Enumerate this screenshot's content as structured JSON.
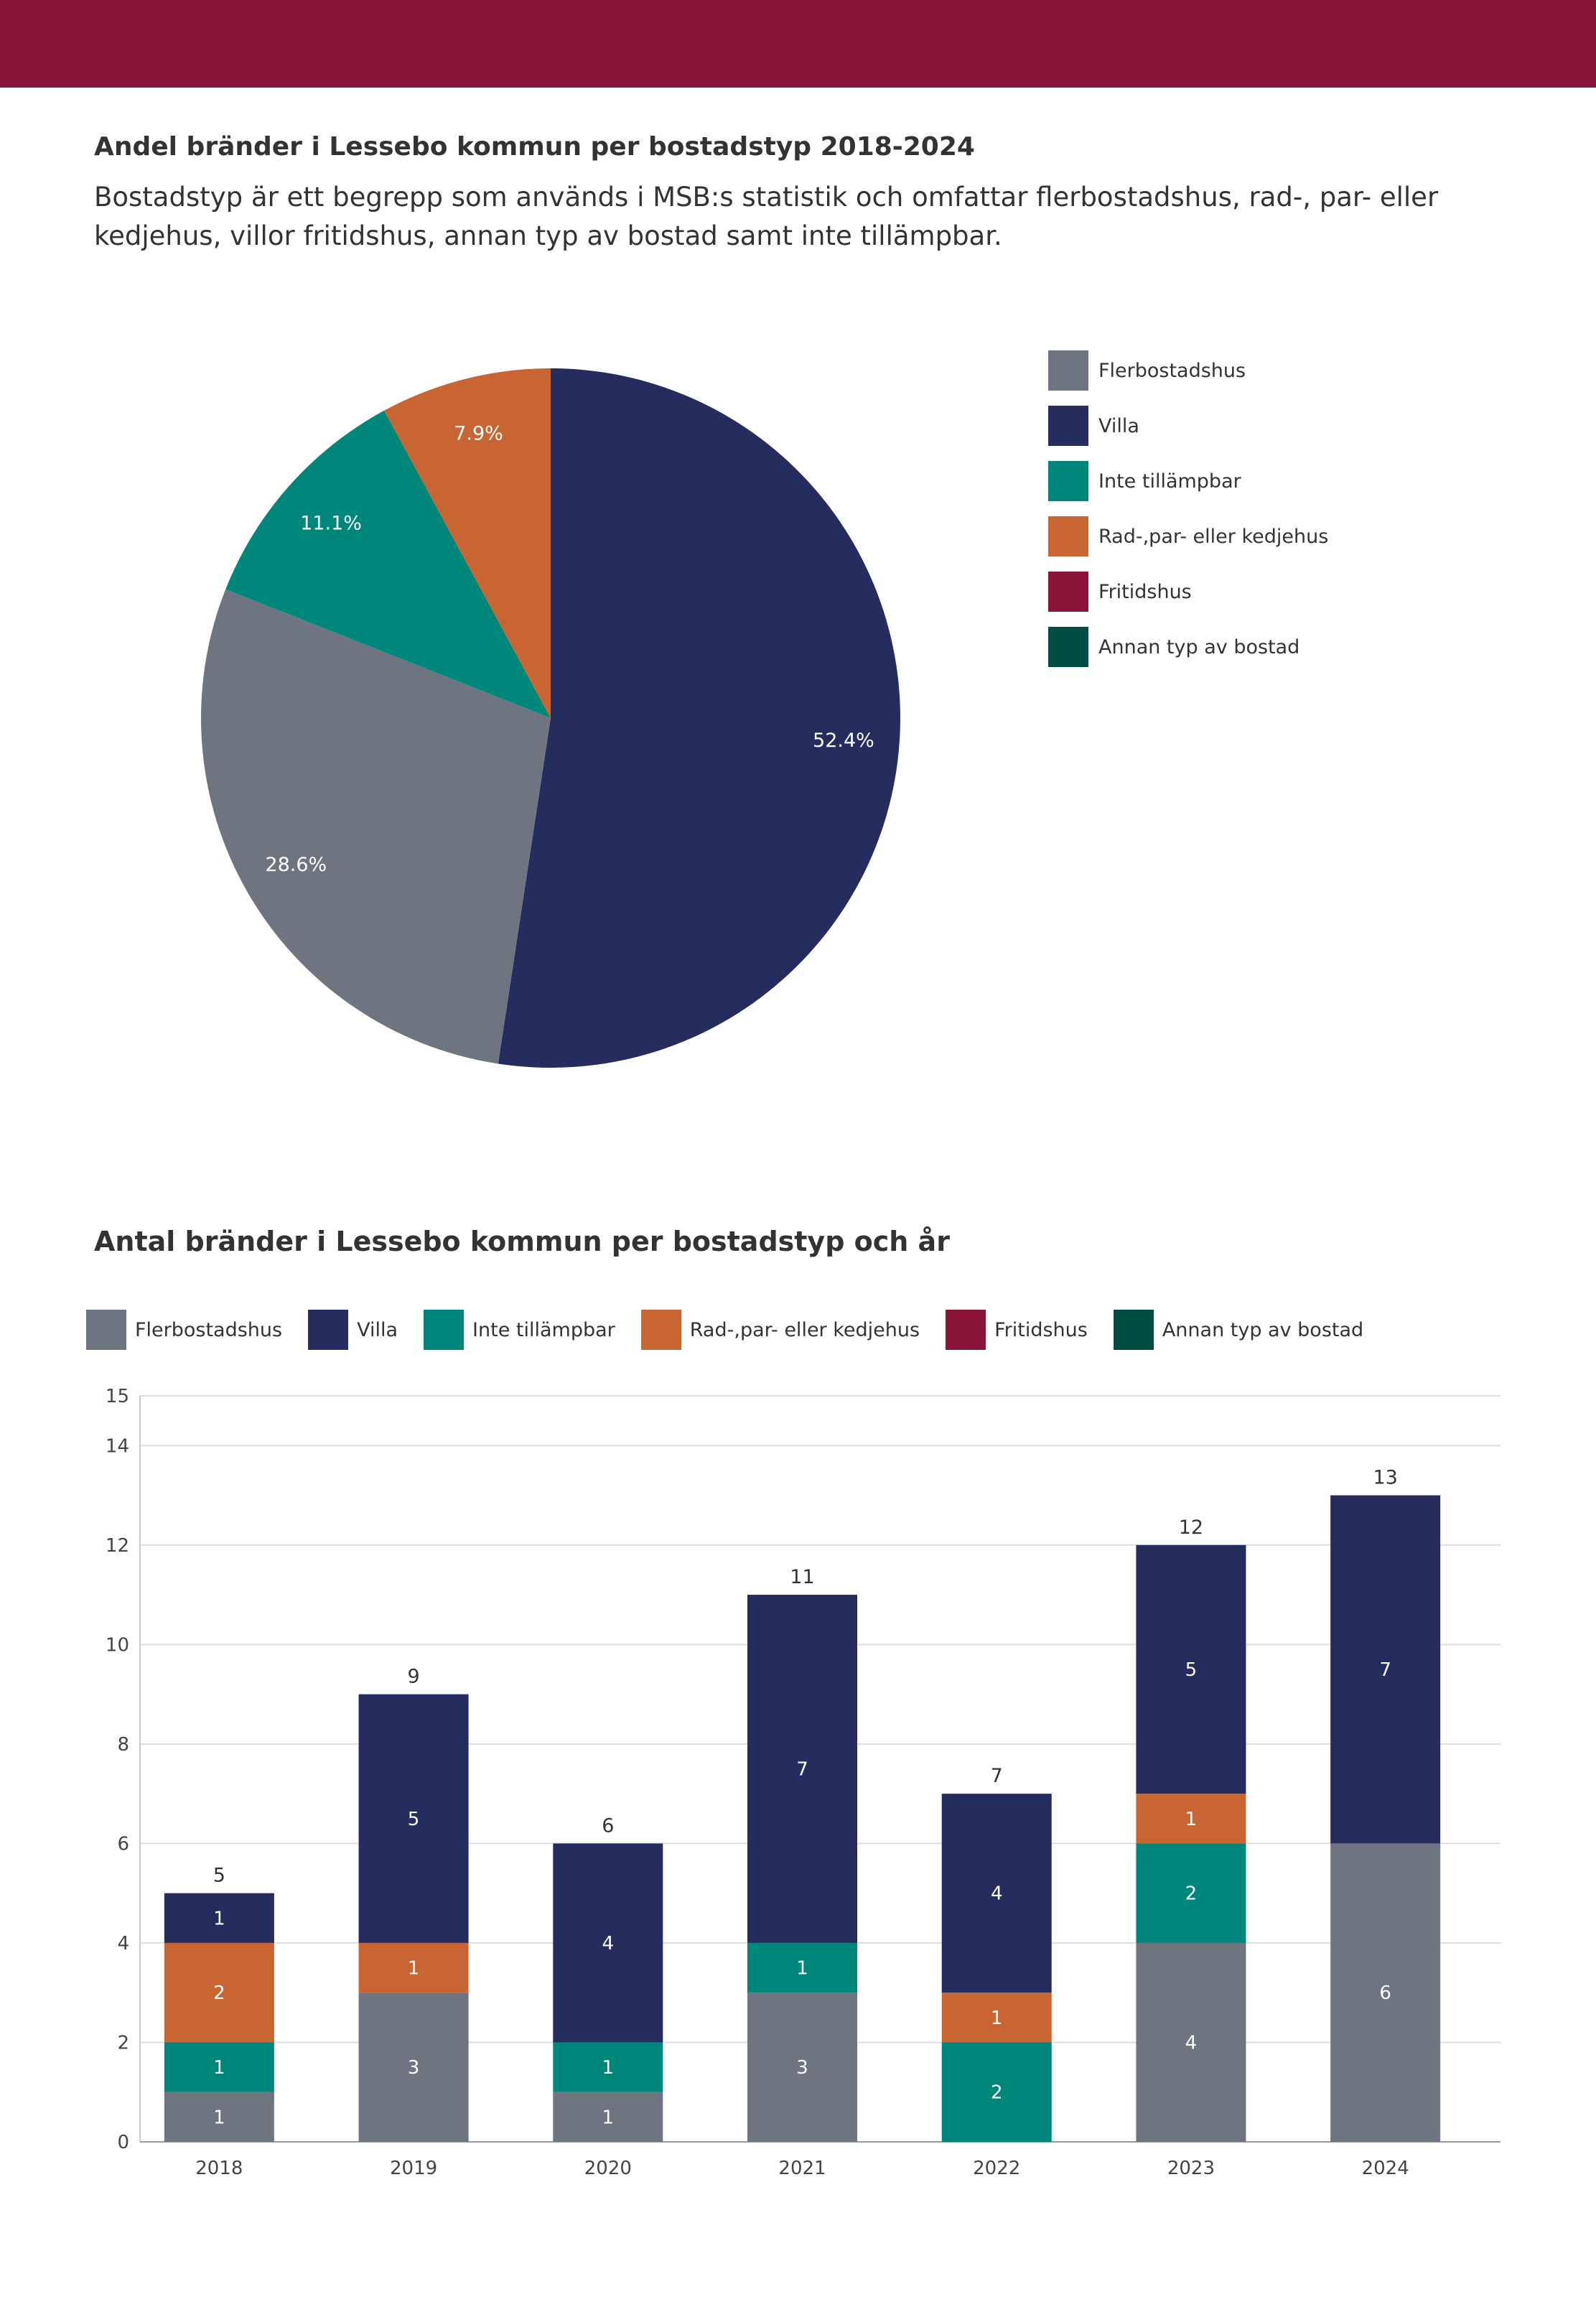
{
  "header": {
    "title1": "Andel bränder i Lessebo kommun per bostadstyp 2018-2024",
    "description": "Bostadstyp är ett begrepp som används i MSB:s statistik och omfattar flerbostadshus, rad-, par- eller kedjehus, villor fritidshus, annan typ av bostad samt inte tillämpbar.",
    "title2": "Antal bränder i Lessebo kommun per bostadstyp och år"
  },
  "colors": {
    "Flerbostadshus": "#6e7580",
    "Villa": "#242d5e",
    "Inte tillämpbar": "#00877c",
    "Rad-,par- eller kedjehus": "#c86532",
    "Fritidshus": "#8b1538",
    "Annan typ av bostad": "#004d44"
  },
  "legend": {
    "items": [
      {
        "key": "Flerbostadshus",
        "label": "Flerbostadshus"
      },
      {
        "key": "Villa",
        "label": "Villa"
      },
      {
        "key": "Inte tillämpbar",
        "label": "Inte tillämpbar"
      },
      {
        "key": "Rad-,par- eller kedjehus",
        "label": "Rad-,par- eller kedjehus"
      },
      {
        "key": "Fritidshus",
        "label": "Fritidshus"
      },
      {
        "key": "Annan typ av bostad",
        "label": "Annan typ av bostad"
      }
    ]
  },
  "chart_data": [
    {
      "type": "pie",
      "title": "Andel bränder i Lessebo kommun per bostadstyp 2018-2024",
      "slices": [
        {
          "label": "Villa",
          "value": 52.4,
          "text": "52.4%"
        },
        {
          "label": "Flerbostadshus",
          "value": 28.6,
          "text": "28.6%"
        },
        {
          "label": "Inte tillämpbar",
          "value": 11.1,
          "text": "11.1%"
        },
        {
          "label": "Rad-,par- eller kedjehus",
          "value": 7.9,
          "text": "7.9%"
        },
        {
          "label": "Fritidshus",
          "value": 0,
          "text": ""
        },
        {
          "label": "Annan typ av bostad",
          "value": 0,
          "text": ""
        }
      ],
      "legend_position": "right"
    },
    {
      "type": "bar",
      "stacked": true,
      "title": "Antal bränder i Lessebo kommun per bostadstyp och år",
      "categories": [
        "2018",
        "2019",
        "2020",
        "2021",
        "2022",
        "2023",
        "2024"
      ],
      "series": [
        {
          "name": "Flerbostadshus",
          "values": [
            1,
            3,
            1,
            3,
            0,
            4,
            6
          ]
        },
        {
          "name": "Inte tillämpbar",
          "values": [
            1,
            0,
            1,
            1,
            2,
            2,
            0
          ]
        },
        {
          "name": "Rad-,par- eller kedjehus",
          "values": [
            2,
            1,
            0,
            0,
            1,
            1,
            0
          ]
        },
        {
          "name": "Villa",
          "values": [
            1,
            5,
            4,
            7,
            4,
            5,
            7
          ]
        },
        {
          "name": "Fritidshus",
          "values": [
            0,
            0,
            0,
            0,
            0,
            0,
            0
          ]
        },
        {
          "name": "Annan typ av bostad",
          "values": [
            0,
            0,
            0,
            0,
            0,
            0,
            0
          ]
        }
      ],
      "totals": [
        5,
        9,
        6,
        11,
        7,
        12,
        13
      ],
      "yticks": [
        0,
        2,
        4,
        6,
        8,
        10,
        12,
        14,
        15
      ],
      "ylim": [
        0,
        15
      ],
      "grid": true,
      "legend_position": "top"
    }
  ]
}
